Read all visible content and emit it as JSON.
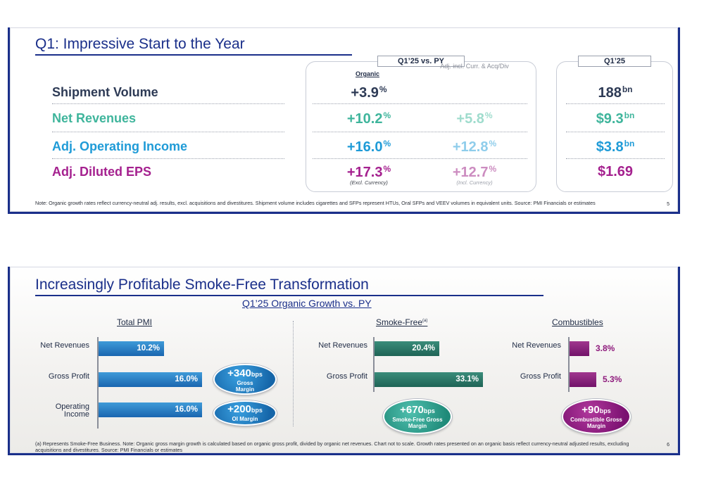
{
  "slide1": {
    "title": "Q1: Impressive Start to the Year",
    "box1_title": "Q1’25 vs. PY",
    "col_organic": "Organic",
    "col_adj": "Adj. incl. Curr. & Acq/Div",
    "box2_title": "Q1’25",
    "rows": [
      {
        "label": "Shipment Volume",
        "color": "#2d3a55",
        "organic": "+3.9",
        "organic_unit": "%",
        "adj": "",
        "adj_unit": "",
        "q1": "188",
        "q1_unit": "bn"
      },
      {
        "label": "Net Revenues",
        "color": "#3fb59c",
        "organic": "+10.2",
        "organic_unit": "%",
        "adj": "+5.8",
        "adj_unit": "%",
        "q1": "$9.3",
        "q1_unit": "bn"
      },
      {
        "label": "Adj. Operating Income",
        "color": "#1f9bd7",
        "organic": "+16.0",
        "organic_unit": "%",
        "adj": "+12.8",
        "adj_unit": "%",
        "q1": "$3.8",
        "q1_unit": "bn"
      },
      {
        "label": "Adj. Diluted EPS",
        "color": "#a5218f",
        "organic": "+17.3",
        "organic_unit": "%",
        "adj": "+12.7",
        "adj_unit": "%",
        "q1": "$1.69",
        "q1_unit": ""
      }
    ],
    "eps_note_organic": "(Excl. Currency)",
    "eps_note_adj": "(Incl. Currency)",
    "footnote": "Note: Organic growth rates reflect currency-neutral adj. results, excl. acquisitions and divestitures. Shipment volume includes cigarettes and SFPs represent HTUs, Oral SFPs and VEEV volumes in equivalent units. Source: PMI Financials or estimates",
    "page": "5"
  },
  "slide2": {
    "title": "Increasingly Profitable Smoke-Free Transformation",
    "subtitle": "Q1’25 Organic Growth vs. PY",
    "sections": {
      "total": {
        "header": "Total PMI",
        "labels": [
          "Net Revenues",
          "Gross Profit",
          "Operating Income"
        ],
        "values": [
          "10.2%",
          "16.0%",
          "16.0%"
        ],
        "bubble1": {
          "value": "+340",
          "unit": "bps",
          "caption": "Gross Margin"
        },
        "bubble2": {
          "value": "+200",
          "unit": "bps",
          "caption": "OI Margin"
        }
      },
      "smokefree": {
        "header": "Smoke-Free",
        "header_sup": "(a)",
        "labels": [
          "Net Revenues",
          "Gross Profit"
        ],
        "values": [
          "20.4%",
          "33.1%"
        ],
        "bubble": {
          "value": "+670",
          "unit": "bps",
          "caption": "Smoke-Free Gross Margin"
        }
      },
      "combustibles": {
        "header": "Combustibles",
        "labels": [
          "Net Revenues",
          "Gross Profit"
        ],
        "values": [
          "3.8%",
          "5.3%"
        ],
        "bubble": {
          "value": "+90",
          "unit": "bps",
          "caption": "Combustible Gross Margin"
        }
      }
    },
    "footnote": "(a) Represents Smoke-Free Business. Note: Organic gross margin growth is calculated based on organic gross profit, divided by organic net revenues. Chart not to scale. Growth rates presented on an organic basis reflect currency-neutral adjusted results, excluding acquisitions and divestitures. Source: PMI Financials or estimates",
    "page": "6"
  }
}
